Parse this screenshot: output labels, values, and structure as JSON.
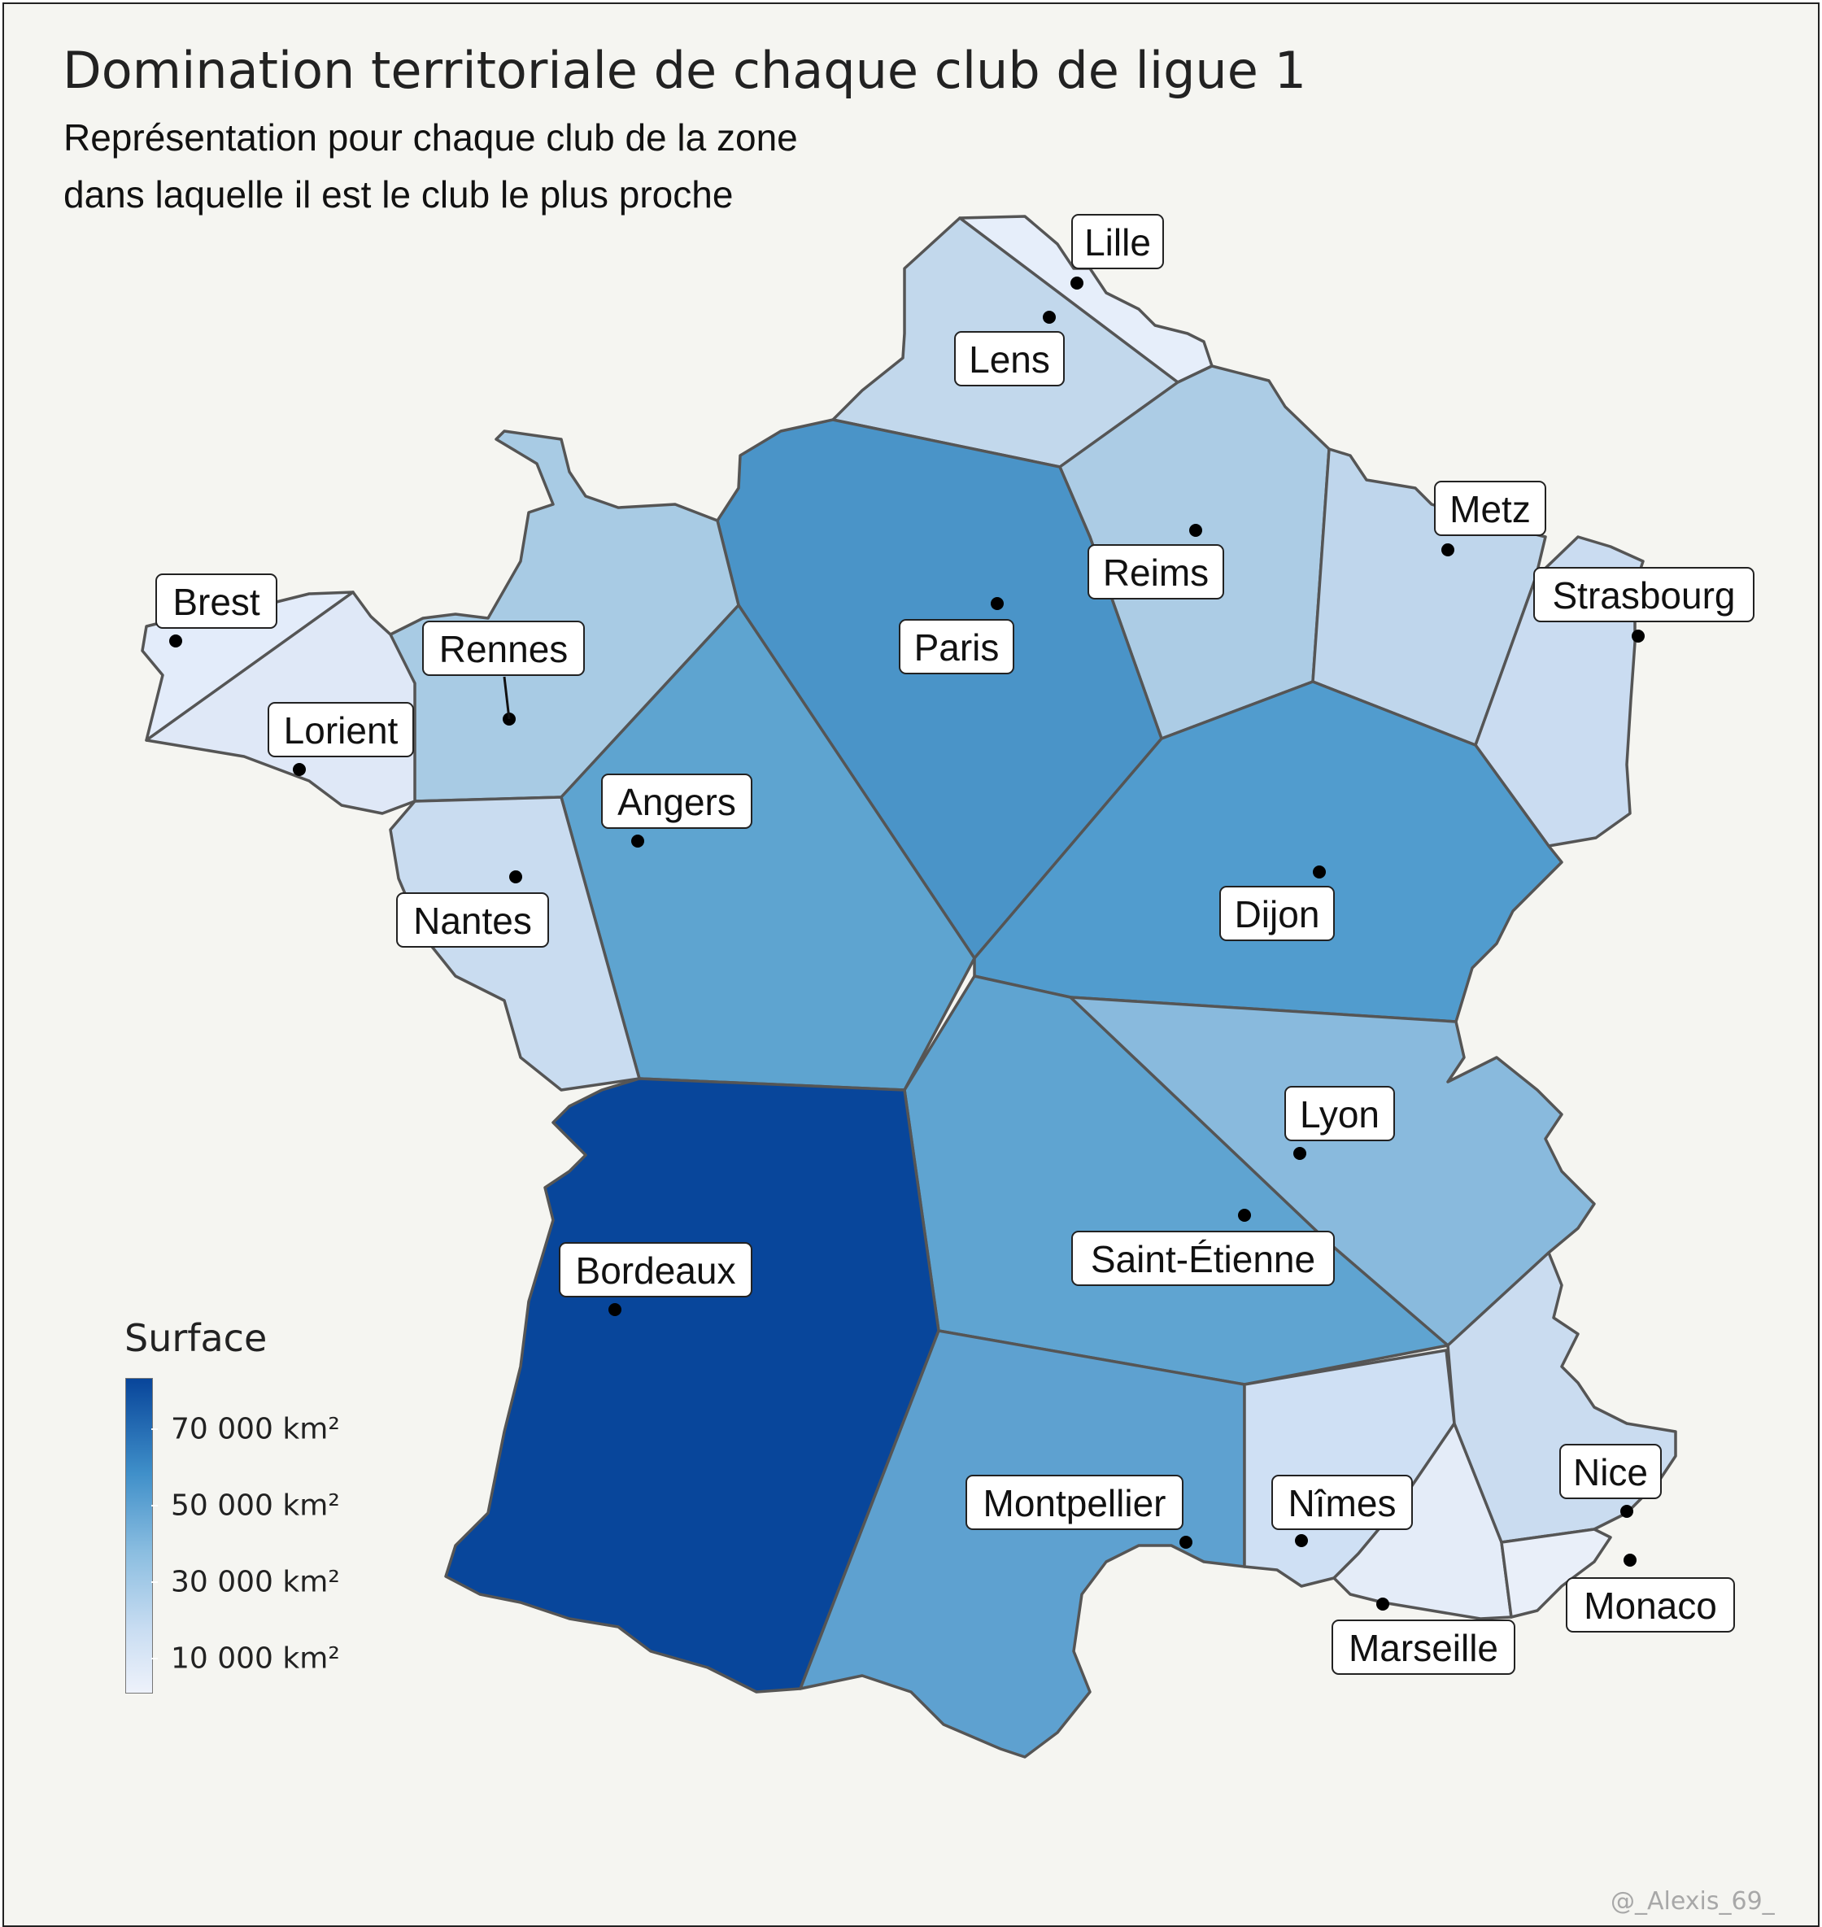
{
  "title": "Domination territoriale de chaque club de ligue 1",
  "subtitle_line1": "Représentation pour chaque club de la zone",
  "subtitle_line2": "dans laquelle il est le club le plus proche",
  "legend": {
    "title": "Surface",
    "labels": [
      "70 000 km²",
      "50 000 km²",
      "30 000 km²",
      "10 000 km²"
    ],
    "color_low": "#eef2fb",
    "color_high": "#08459a"
  },
  "credit": "@_Alexis_69_",
  "colors": {
    "border": "#555555",
    "dot": "#000000",
    "background": "#f5f5f1"
  },
  "cities": [
    {
      "name": "Lille",
      "color": "#e6eefa"
    },
    {
      "name": "Lens",
      "color": "#c2d8ec"
    },
    {
      "name": "Metz",
      "color": "#bfd6ec"
    },
    {
      "name": "Reims",
      "color": "#acccE5"
    },
    {
      "name": "Strasbourg",
      "color": "#cadcf1"
    },
    {
      "name": "Brest",
      "color": "#e3ecfa"
    },
    {
      "name": "Rennes",
      "color": "#a8cbe4"
    },
    {
      "name": "Paris",
      "color": "#4a94c8"
    },
    {
      "name": "Lorient",
      "color": "#dfe8f7"
    },
    {
      "name": "Angers",
      "color": "#5ea4d0"
    },
    {
      "name": "Nantes",
      "color": "#c9dcf0"
    },
    {
      "name": "Dijon",
      "color": "#519cce"
    },
    {
      "name": "Lyon",
      "color": "#89badd"
    },
    {
      "name": "Saint-Étienne",
      "color": "#5fa4d1"
    },
    {
      "name": "Bordeaux",
      "color": "#08469b"
    },
    {
      "name": "Montpellier",
      "color": "#5ea1d0"
    },
    {
      "name": "Nîmes",
      "color": "#cfe0f4"
    },
    {
      "name": "Nice",
      "color": "#cadcf0"
    },
    {
      "name": "Monaco",
      "color": "#e9eff9"
    },
    {
      "name": "Marseille",
      "color": "#e4ecf8"
    }
  ]
}
